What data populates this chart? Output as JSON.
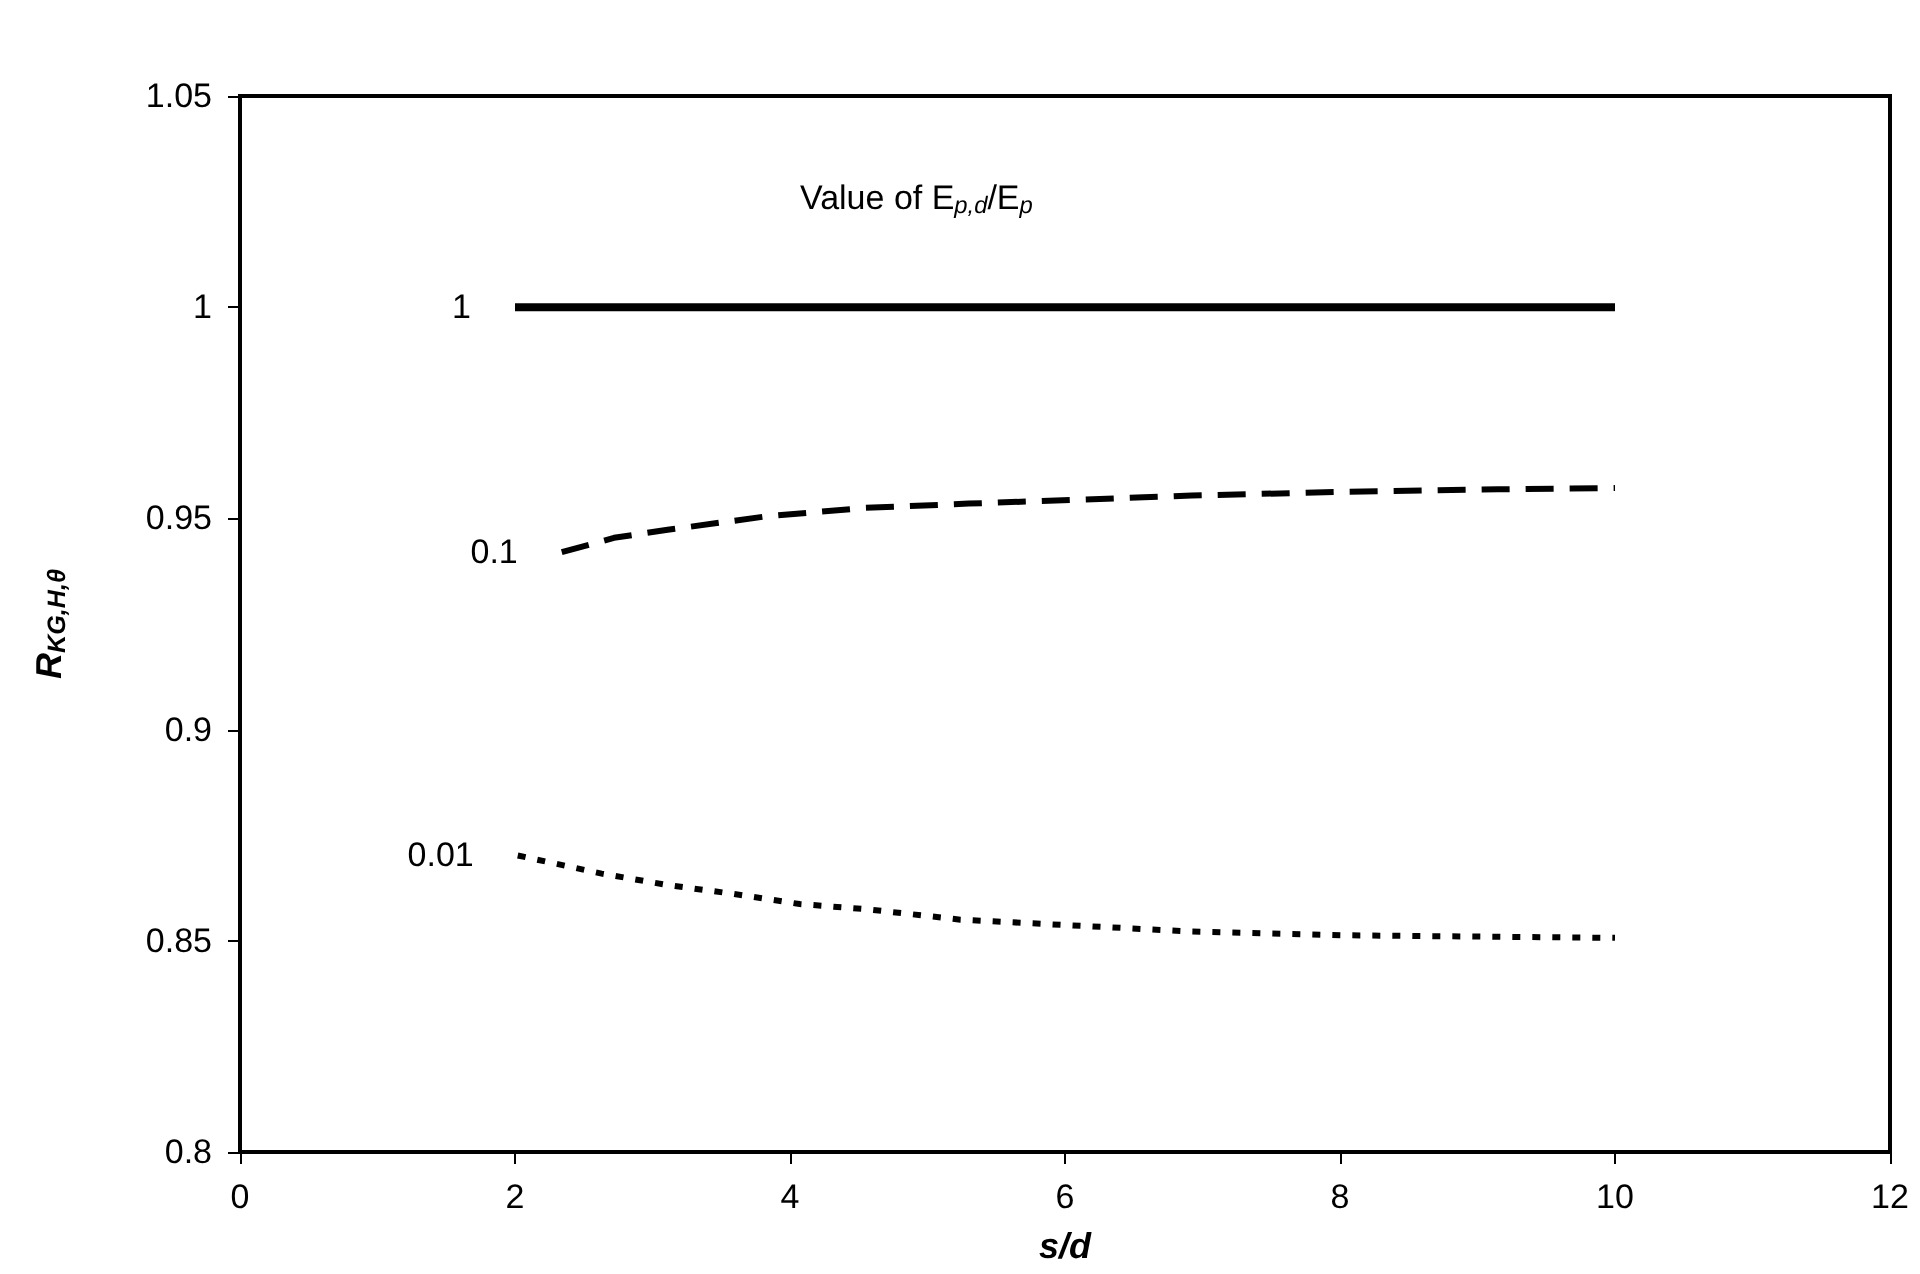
{
  "chart_data": {
    "type": "line",
    "legend_title": "Value of E$_{p,d}$/E$_{p}$",
    "xlabel": "s/d",
    "ylabel": "R$_{KG,H,θ}$",
    "xlim": [
      0,
      12
    ],
    "xticks": [
      0,
      2,
      4,
      6,
      8,
      10,
      12
    ],
    "ylim": [
      0.8,
      1.05
    ],
    "yticks": [
      0.8,
      0.85,
      0.9,
      0.95,
      1,
      1.05
    ],
    "grid": false,
    "legend": false,
    "marker": "none",
    "series": [
      {
        "name": "1",
        "color": "#000000",
        "line_style": "solid",
        "x": [
          2,
          10
        ],
        "values": [
          1,
          1
        ]
      },
      {
        "name": "0.1",
        "color": "#000000",
        "line_style": "dashed",
        "x": [
          2.34,
          2.72,
          3.11,
          3.83,
          4.55,
          5.3,
          6.92,
          8.04,
          9.15,
          10
        ],
        "values": [
          0.942,
          0.9454,
          0.9473,
          0.9505,
          0.9525,
          0.9535,
          0.9554,
          0.9563,
          0.9569,
          0.9572
        ]
      },
      {
        "name": "0.01",
        "color": "#000000",
        "line_style": "dotted",
        "x": [
          2.02,
          2.63,
          3.11,
          3.59,
          4.07,
          4.55,
          5.24,
          6.92,
          8.04,
          10
        ],
        "values": [
          0.8702,
          0.8659,
          0.8632,
          0.8611,
          0.8587,
          0.8575,
          0.855,
          0.8522,
          0.8513,
          0.8507
        ]
      }
    ]
  }
}
